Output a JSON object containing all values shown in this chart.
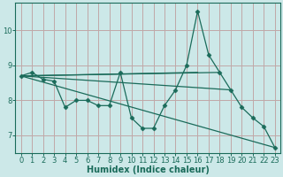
{
  "xlabel": "Humidex (Indice chaleur)",
  "bg_color": "#cce8e8",
  "grid_color": "#c0a8a8",
  "line_color": "#1a6b5a",
  "xlim": [
    -0.5,
    23.5
  ],
  "ylim": [
    6.5,
    10.8
  ],
  "yticks": [
    7,
    8,
    9,
    10
  ],
  "xticks": [
    0,
    1,
    2,
    3,
    4,
    5,
    6,
    7,
    8,
    9,
    10,
    11,
    12,
    13,
    14,
    15,
    16,
    17,
    18,
    19,
    20,
    21,
    22,
    23
  ],
  "main_series": [
    8.7,
    8.8,
    8.6,
    8.55,
    7.8,
    8.0,
    8.0,
    7.85,
    7.85,
    8.8,
    7.5,
    7.2,
    7.2,
    7.85,
    8.3,
    9.0,
    10.55,
    9.3,
    8.8,
    8.3,
    7.8,
    7.5,
    7.25,
    6.65
  ],
  "trend1_x": [
    0,
    23
  ],
  "trend1_y": [
    8.7,
    6.65
  ],
  "trend2_x": [
    0,
    18
  ],
  "trend2_y": [
    8.7,
    8.8
  ],
  "trend3_x": [
    0,
    19
  ],
  "trend3_y": [
    8.7,
    8.3
  ],
  "trend4_x": [
    0,
    16
  ],
  "trend4_y": [
    8.7,
    8.8
  ]
}
